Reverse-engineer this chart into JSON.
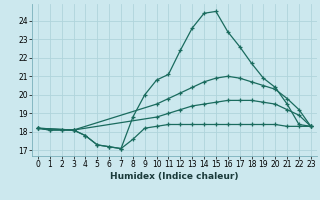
{
  "xlabel": "Humidex (Indice chaleur)",
  "background_color": "#cce8ee",
  "grid_color": "#b0d4dc",
  "line_color": "#1a6b5e",
  "xlim": [
    -0.5,
    23.5
  ],
  "ylim": [
    16.7,
    24.9
  ],
  "xticks": [
    0,
    1,
    2,
    3,
    4,
    5,
    6,
    7,
    8,
    9,
    10,
    11,
    12,
    13,
    14,
    15,
    16,
    17,
    18,
    19,
    20,
    21,
    22,
    23
  ],
  "yticks": [
    17,
    18,
    19,
    20,
    21,
    22,
    23,
    24
  ],
  "line_peak_x": [
    0,
    1,
    2,
    3,
    4,
    5,
    6,
    7,
    8,
    9,
    10,
    11,
    12,
    13,
    14,
    15,
    16,
    17,
    18,
    19,
    20,
    21,
    22,
    23
  ],
  "line_peak_y": [
    18.2,
    18.1,
    18.1,
    18.1,
    17.8,
    17.3,
    17.2,
    17.1,
    18.8,
    20.0,
    20.8,
    21.1,
    22.4,
    23.6,
    24.4,
    24.5,
    23.4,
    22.6,
    21.7,
    20.9,
    20.4,
    19.5,
    18.4,
    18.3
  ],
  "line_low_x": [
    0,
    1,
    2,
    3,
    4,
    5,
    6,
    7,
    8,
    9,
    10,
    11,
    12,
    13,
    14,
    15,
    16,
    17,
    18,
    19,
    20,
    21,
    22,
    23
  ],
  "line_low_y": [
    18.2,
    18.1,
    18.1,
    18.1,
    17.8,
    17.3,
    17.2,
    17.1,
    17.6,
    18.2,
    18.3,
    18.4,
    18.4,
    18.4,
    18.4,
    18.4,
    18.4,
    18.4,
    18.4,
    18.4,
    18.4,
    18.3,
    18.3,
    18.3
  ],
  "line_upper_x": [
    0,
    3,
    10,
    11,
    12,
    13,
    14,
    15,
    16,
    17,
    18,
    19,
    20,
    21,
    22,
    23
  ],
  "line_upper_y": [
    18.2,
    18.1,
    19.5,
    19.8,
    20.1,
    20.4,
    20.7,
    20.9,
    21.0,
    20.9,
    20.7,
    20.5,
    20.3,
    19.8,
    19.2,
    18.3
  ],
  "line_lower_x": [
    0,
    3,
    10,
    11,
    12,
    13,
    14,
    15,
    16,
    17,
    18,
    19,
    20,
    21,
    22,
    23
  ],
  "line_lower_y": [
    18.2,
    18.1,
    18.8,
    19.0,
    19.2,
    19.4,
    19.5,
    19.6,
    19.7,
    19.7,
    19.7,
    19.6,
    19.5,
    19.2,
    18.9,
    18.3
  ]
}
